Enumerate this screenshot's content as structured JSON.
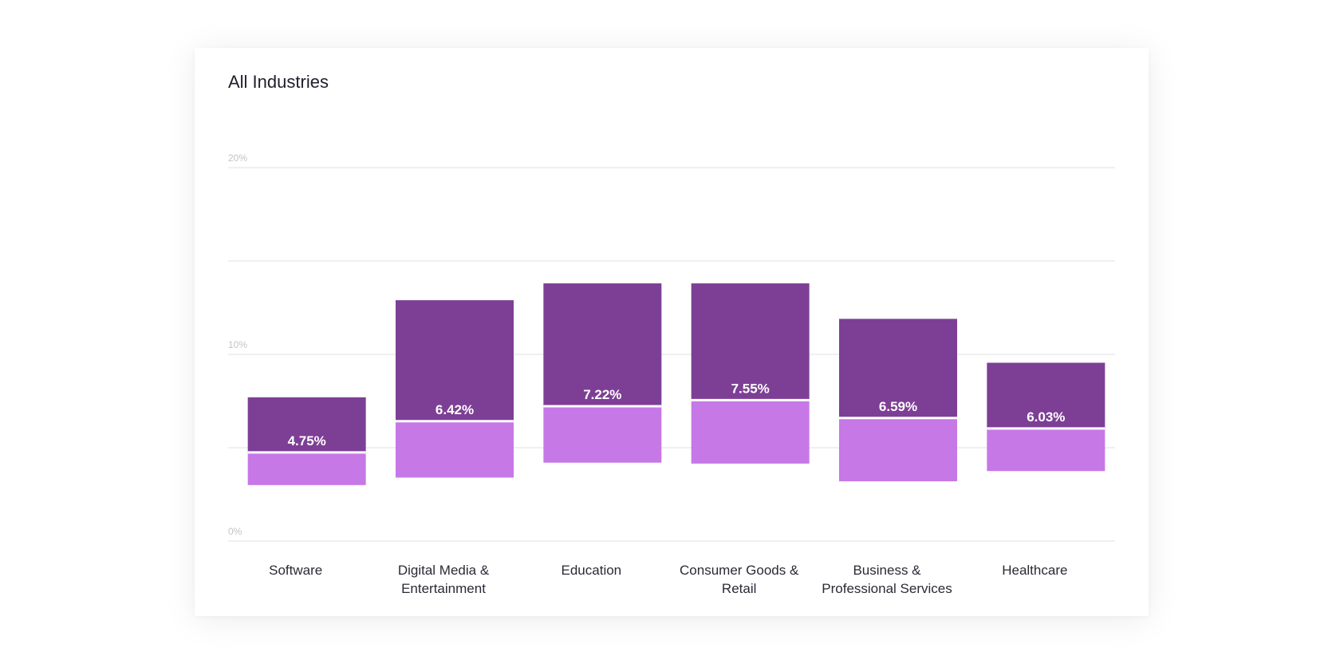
{
  "chart_data": {
    "type": "bar",
    "title": "All Industries",
    "xlabel": "",
    "ylabel": "",
    "ylim": [
      0,
      20
    ],
    "yticks": [
      0,
      5,
      10,
      15,
      20
    ],
    "ytick_labels": [
      "0%",
      "",
      "10%",
      "",
      "20%"
    ],
    "grid": true,
    "categories": [
      [
        "Software"
      ],
      [
        "Digital Media &",
        "Entertainment"
      ],
      [
        "Education"
      ],
      [
        "Consumer Goods &",
        "Retail"
      ],
      [
        "Business &",
        "Professional Services"
      ],
      [
        "Healthcare"
      ]
    ],
    "ranges": [
      {
        "low": 3.0,
        "median": 4.75,
        "high": 7.7,
        "label": "4.75%"
      },
      {
        "low": 3.4,
        "median": 6.42,
        "high": 12.9,
        "label": "6.42%"
      },
      {
        "low": 4.2,
        "median": 7.22,
        "high": 13.8,
        "label": "7.22%"
      },
      {
        "low": 4.15,
        "median": 7.55,
        "high": 13.8,
        "label": "7.55%"
      },
      {
        "low": 3.2,
        "median": 6.59,
        "high": 11.9,
        "label": "6.59%"
      },
      {
        "low": 3.75,
        "median": 6.03,
        "high": 9.55,
        "label": "6.03%"
      }
    ],
    "colors": {
      "upper": "#7d3f95",
      "lower": "#c678e6",
      "divider": "#ffffff",
      "grid": "#ececec"
    }
  }
}
